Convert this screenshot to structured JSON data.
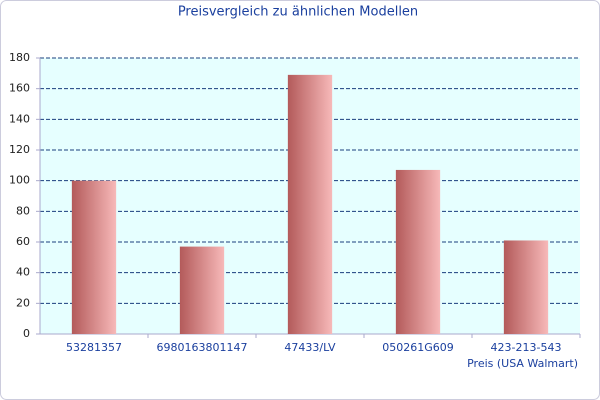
{
  "chart_data": {
    "type": "bar",
    "title": "Preisvergleich zu ähnlichen Modellen",
    "x_label": "Preis (USA Walmart)",
    "categories": [
      "53281357",
      "6980163801147",
      "47433/LV",
      "050261G609",
      "423-213-543"
    ],
    "values": [
      100,
      57,
      169,
      107,
      61
    ],
    "color": [
      "#b35a5a",
      "#f7b9b9"
    ],
    "ylim": [
      0,
      180
    ],
    "yticks": [
      0,
      20,
      40,
      60,
      80,
      100,
      120,
      140,
      160,
      180
    ],
    "grid": true
  }
}
